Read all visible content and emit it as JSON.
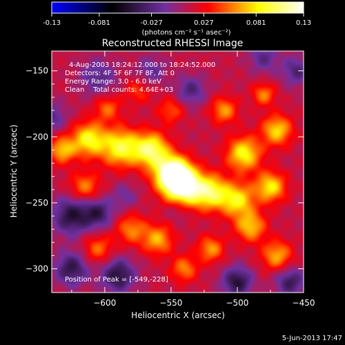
{
  "chart_data": {
    "type": "heatmap",
    "title": "Reconstructed RHESSI Image",
    "xlabel": "Heliocentric X (arcsec)",
    "ylabel": "Heliocentric Y (arcsec)",
    "xlim": [
      -640,
      -450
    ],
    "ylim": [
      -318,
      -135
    ],
    "x_ticks": [
      -600,
      -550,
      -500,
      -450
    ],
    "y_ticks": [
      -300,
      -250,
      -200,
      -150
    ],
    "annotations": [
      "4-Aug-2003 18:24:12.000 to 18:24:52.000",
      "Detectors: 4F 5F 6F 7F 8F, Att 0",
      "Energy Range: 3.0 - 6.0 keV",
      "Clean    Total counts: 4.64E+03"
    ],
    "peak_label": "Position of Peak = [-549,-228]",
    "peak": [
      -549,
      -228
    ],
    "colorbar": {
      "range": [
        -0.13,
        0.13
      ],
      "tick_labels": [
        "-0.13",
        "-0.081",
        "-0.027",
        "0.027",
        "0.081",
        "0.13"
      ],
      "tick_values": [
        -0.13,
        -0.081,
        -0.027,
        0.027,
        0.081,
        0.13
      ],
      "unit_label": "(photons cm⁻² s⁻¹ asec⁻²)"
    },
    "colormap": [
      "#0000ff",
      "#000000",
      "#7030a0",
      "#ff0000",
      "#ffff00",
      "#ffffff"
    ],
    "sources": [
      {
        "x": -549,
        "y": -228,
        "amp": 0.13,
        "sigma": 9
      },
      {
        "x": -540,
        "y": -238,
        "amp": 0.11,
        "sigma": 10
      },
      {
        "x": -565,
        "y": -210,
        "amp": 0.09,
        "sigma": 9
      },
      {
        "x": -588,
        "y": -208,
        "amp": 0.08,
        "sigma": 10
      },
      {
        "x": -612,
        "y": -202,
        "amp": 0.075,
        "sigma": 9
      },
      {
        "x": -632,
        "y": -210,
        "amp": 0.06,
        "sigma": 7
      },
      {
        "x": -520,
        "y": -242,
        "amp": 0.08,
        "sigma": 9
      },
      {
        "x": -500,
        "y": -248,
        "amp": 0.07,
        "sigma": 9
      },
      {
        "x": -475,
        "y": -238,
        "amp": 0.07,
        "sigma": 8
      },
      {
        "x": -490,
        "y": -268,
        "amp": 0.06,
        "sigma": 8
      },
      {
        "x": -470,
        "y": -290,
        "amp": 0.055,
        "sigma": 8
      },
      {
        "x": -520,
        "y": -285,
        "amp": 0.05,
        "sigma": 7
      },
      {
        "x": -495,
        "y": -213,
        "amp": 0.075,
        "sigma": 9
      },
      {
        "x": -470,
        "y": -195,
        "amp": 0.065,
        "sigma": 8
      },
      {
        "x": -510,
        "y": -180,
        "amp": 0.05,
        "sigma": 7
      },
      {
        "x": -480,
        "y": -168,
        "amp": 0.045,
        "sigma": 6
      },
      {
        "x": -560,
        "y": -278,
        "amp": 0.055,
        "sigma": 8
      },
      {
        "x": -580,
        "y": -270,
        "amp": 0.045,
        "sigma": 8
      },
      {
        "x": -605,
        "y": -285,
        "amp": 0.04,
        "sigma": 8
      },
      {
        "x": -540,
        "y": -300,
        "amp": 0.045,
        "sigma": 7
      },
      {
        "x": -598,
        "y": -178,
        "amp": 0.04,
        "sigma": 7
      },
      {
        "x": -575,
        "y": -165,
        "amp": 0.03,
        "sigma": 7
      },
      {
        "x": -550,
        "y": -180,
        "amp": 0.035,
        "sigma": 7
      },
      {
        "x": -615,
        "y": -238,
        "amp": 0.045,
        "sigma": 8
      },
      {
        "x": -535,
        "y": -165,
        "amp": -0.04,
        "sigma": 8
      },
      {
        "x": -605,
        "y": -155,
        "amp": -0.035,
        "sigma": 10
      },
      {
        "x": -625,
        "y": -260,
        "amp": -0.06,
        "sigma": 10
      },
      {
        "x": -605,
        "y": -258,
        "amp": -0.05,
        "sigma": 8
      },
      {
        "x": -585,
        "y": -245,
        "amp": -0.025,
        "sigma": 7
      },
      {
        "x": -625,
        "y": -300,
        "amp": -0.055,
        "sigma": 9
      },
      {
        "x": -590,
        "y": -305,
        "amp": -0.06,
        "sigma": 9
      },
      {
        "x": -500,
        "y": -310,
        "amp": -0.06,
        "sigma": 8
      },
      {
        "x": -460,
        "y": -310,
        "amp": -0.05,
        "sigma": 8
      },
      {
        "x": -455,
        "y": -150,
        "amp": -0.04,
        "sigma": 8
      },
      {
        "x": -480,
        "y": -140,
        "amp": -0.035,
        "sigma": 8
      },
      {
        "x": -640,
        "y": -185,
        "amp": -0.035,
        "sigma": 8
      },
      {
        "x": -545,
        "y": -255,
        "amp": -0.02,
        "sigma": 6
      },
      {
        "x": -565,
        "y": -150,
        "amp": -0.03,
        "sigma": 8
      }
    ]
  },
  "footer": {
    "date": "5-Jun-2013 17:47"
  }
}
